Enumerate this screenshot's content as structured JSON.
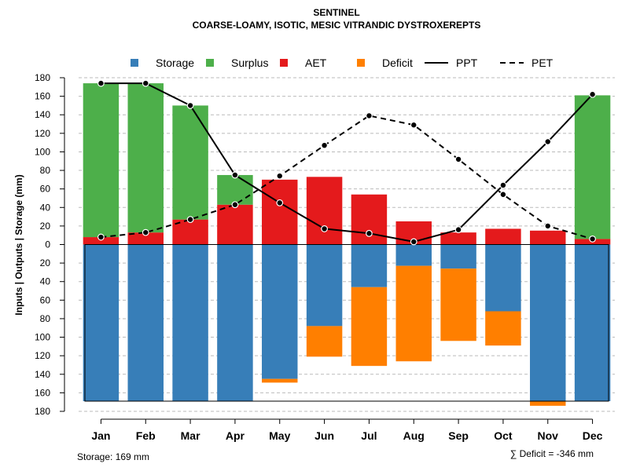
{
  "chart_data": {
    "type": "bar",
    "title": "SENTINEL",
    "subtitle": "COARSE-LOAMY, ISOTIC, MESIC VITRANDIC DYSTROXEREPTS",
    "ylabel": "Inputs | Outputs | Storage    (mm)",
    "ylim": [
      -180,
      180
    ],
    "yticks": [
      180,
      160,
      140,
      120,
      100,
      80,
      60,
      40,
      20,
      0,
      -20,
      -40,
      -60,
      -80,
      -100,
      -120,
      -140,
      -160,
      -180
    ],
    "ytick_labels": [
      "180",
      "160",
      "140",
      "120",
      "100",
      "80",
      "60",
      "40",
      "20",
      "0",
      "20",
      "40",
      "60",
      "80",
      "100",
      "120",
      "140",
      "160",
      "180"
    ],
    "categories": [
      "Jan",
      "Feb",
      "Mar",
      "Apr",
      "May",
      "Jun",
      "Jul",
      "Aug",
      "Sep",
      "Oct",
      "Nov",
      "Dec"
    ],
    "grid": true,
    "legend_position": "top",
    "legend": [
      {
        "key": "storage",
        "label": "Storage",
        "kind": "square",
        "color": "#377eb8"
      },
      {
        "key": "surplus",
        "label": "Surplus",
        "kind": "square",
        "color": "#4daf4a"
      },
      {
        "key": "aet",
        "label": "AET",
        "kind": "square",
        "color": "#e41a1c"
      },
      {
        "key": "deficit",
        "label": "Deficit",
        "kind": "square",
        "color": "#ff7f00"
      },
      {
        "key": "ppt",
        "label": "PPT",
        "kind": "solid-line",
        "color": "#000000"
      },
      {
        "key": "pet",
        "label": "PET",
        "kind": "dashed-line",
        "color": "#000000"
      }
    ],
    "series": [
      {
        "name": "AET",
        "color": "#e41a1c",
        "values": [
          8,
          13,
          27,
          43,
          70,
          73,
          54,
          25,
          13,
          17,
          15,
          6
        ]
      },
      {
        "name": "Surplus",
        "color": "#4daf4a",
        "values": [
          166,
          161,
          123,
          32,
          0,
          0,
          0,
          0,
          0,
          0,
          0,
          155
        ]
      },
      {
        "name": "Storage",
        "color": "#377eb8",
        "values": [
          169,
          169,
          169,
          169,
          145,
          88,
          46,
          23,
          26,
          72,
          169,
          169
        ]
      },
      {
        "name": "Deficit",
        "color": "#ff7f00",
        "values": [
          0,
          0,
          0,
          0,
          4,
          33,
          85,
          103,
          78,
          37,
          5,
          0
        ]
      },
      {
        "name": "PPT",
        "color": "#000000",
        "values": [
          174,
          174,
          150,
          75,
          45,
          17,
          12,
          3,
          16,
          64,
          111,
          162
        ]
      },
      {
        "name": "PET",
        "color": "#000000",
        "values": [
          8,
          13,
          27,
          43,
          74,
          107,
          139,
          129,
          92,
          54,
          20,
          6
        ]
      }
    ],
    "storage_capacity": 169,
    "footnote_storage": "Storage: 169 mm",
    "footnote_deficit": "∑ Deficit = -346 mm"
  }
}
